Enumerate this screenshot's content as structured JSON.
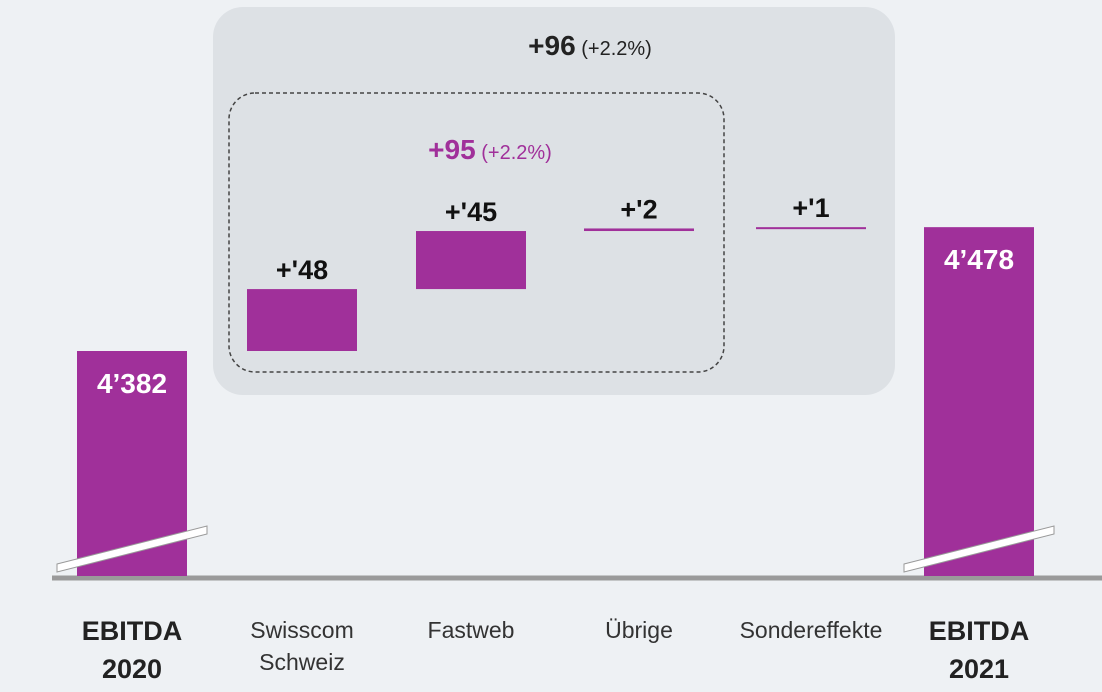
{
  "chart_data": {
    "type": "waterfall",
    "categories": [
      "EBITDA 2020",
      "Swisscom Schweiz",
      "Fastweb",
      "Übrige",
      "Sondereffekte",
      "EBITDA 2021"
    ],
    "measure": [
      "absolute",
      "relative",
      "relative",
      "relative",
      "relative",
      "total"
    ],
    "values": [
      4382,
      48,
      45,
      2,
      1,
      4478
    ],
    "value_labels": [
      "4’382",
      "+'48",
      "+'45",
      "+'2",
      "+'1",
      "4’478"
    ],
    "color": "#a0309a",
    "annotations": [
      {
        "text": "+96",
        "detail": "(+2.2%)",
        "color": "#222222"
      },
      {
        "text": "+95",
        "detail": "(+2.2%)",
        "color": "#a0309a"
      }
    ]
  }
}
